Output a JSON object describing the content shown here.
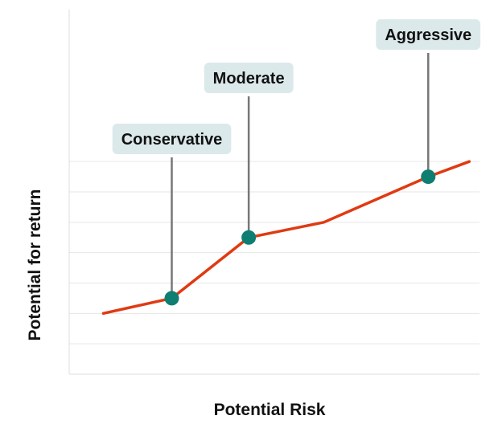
{
  "chart_data": {
    "type": "line",
    "title": "",
    "xlabel": "Potential Risk",
    "ylabel": "Potential for return",
    "xlim": [
      0,
      12
    ],
    "ylim": [
      0,
      12
    ],
    "grid": true,
    "tick_labels_shown": false,
    "series": [
      {
        "values": [
          {
            "x": 1.0,
            "y": 2.0
          },
          {
            "x": 3.0,
            "y": 2.5
          },
          {
            "x": 5.25,
            "y": 4.5
          },
          {
            "x": 7.45,
            "y": 5.0
          },
          {
            "x": 10.5,
            "y": 6.5
          },
          {
            "x": 11.7,
            "y": 7.0
          }
        ]
      }
    ],
    "annotations": [
      {
        "label": "Conservative",
        "x": 3.0,
        "y": 2.5
      },
      {
        "label": "Moderate",
        "x": 5.25,
        "y": 4.5
      },
      {
        "label": "Aggressive",
        "x": 10.5,
        "y": 6.5
      }
    ]
  },
  "colors": {
    "line": "#E03A12",
    "marker": "#0E7E73",
    "callout_bg": "#DCE9EA",
    "leader": "#777777",
    "grid": "#E6E6E6",
    "axis": "#DDDDDD",
    "text": "#111111"
  }
}
